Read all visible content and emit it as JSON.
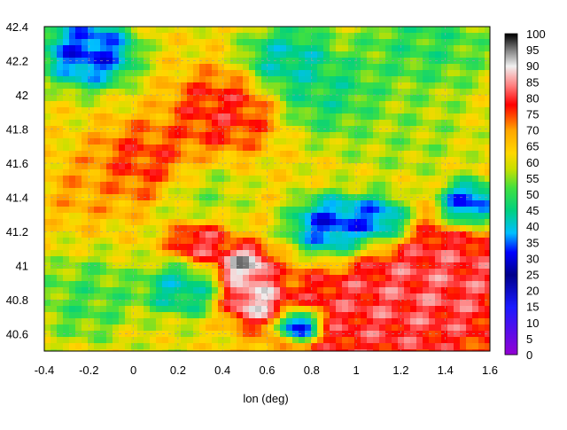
{
  "chart_data": {
    "type": "heatmap",
    "title": "",
    "xlabel": "lon (deg)",
    "ylabel": "",
    "xlim": [
      -0.4,
      1.6
    ],
    "ylim": [
      40.5,
      42.4
    ],
    "x_ticks": [
      "-0.4",
      "-0.2",
      "0",
      "0.2",
      "0.4",
      "0.6",
      "0.8",
      "1",
      "1.2",
      "1.4",
      "1.6"
    ],
    "y_ticks": [
      "40.6",
      "40.8",
      "41",
      "41.2",
      "41.4",
      "41.6",
      "41.8",
      "42",
      "42.2",
      "42.4"
    ],
    "grid": true,
    "colorbar": {
      "range": [
        0,
        100
      ],
      "ticks": [
        "0",
        "5",
        "10",
        "15",
        "20",
        "25",
        "30",
        "35",
        "40",
        "45",
        "50",
        "55",
        "60",
        "65",
        "70",
        "75",
        "80",
        "85",
        "90",
        "95",
        "100"
      ],
      "stops": [
        {
          "v": 0,
          "c": "#9400d3"
        },
        {
          "v": 15,
          "c": "#1a1aff"
        },
        {
          "v": 25,
          "c": "#00008b"
        },
        {
          "v": 32,
          "c": "#0000ff"
        },
        {
          "v": 38,
          "c": "#00bfff"
        },
        {
          "v": 45,
          "c": "#00d080"
        },
        {
          "v": 52,
          "c": "#40e040"
        },
        {
          "v": 58,
          "c": "#c8e000"
        },
        {
          "v": 63,
          "c": "#ffd700"
        },
        {
          "v": 70,
          "c": "#ffa500"
        },
        {
          "v": 78,
          "c": "#ff0000"
        },
        {
          "v": 84,
          "c": "#ff8080"
        },
        {
          "v": 90,
          "c": "#f0f0f0"
        },
        {
          "v": 95,
          "c": "#808080"
        },
        {
          "v": 100,
          "c": "#000000"
        }
      ]
    },
    "features": [
      {
        "lon": -0.2,
        "lat": 42.25,
        "v": 28,
        "s": 0.1
      },
      {
        "lon": 0.7,
        "lat": 42.2,
        "v": 40,
        "s": 0.1
      },
      {
        "lon": 0.9,
        "lat": 42.0,
        "v": 45,
        "s": 0.12
      },
      {
        "lon": 1.3,
        "lat": 42.3,
        "v": 48,
        "s": 0.15
      },
      {
        "lon": 1.2,
        "lat": 41.8,
        "v": 55,
        "s": 0.15
      },
      {
        "lon": 0.05,
        "lat": 41.6,
        "v": 78,
        "s": 0.12
      },
      {
        "lon": 0.4,
        "lat": 41.9,
        "v": 80,
        "s": 0.12
      },
      {
        "lon": 0.3,
        "lat": 41.4,
        "v": 55,
        "s": 0.1
      },
      {
        "lon": -0.2,
        "lat": 41.45,
        "v": 70,
        "s": 0.1
      },
      {
        "lon": 0.9,
        "lat": 41.2,
        "v": 22,
        "s": 0.1
      },
      {
        "lon": 1.1,
        "lat": 41.25,
        "v": 24,
        "s": 0.08
      },
      {
        "lon": 1.5,
        "lat": 41.35,
        "v": 25,
        "s": 0.07
      },
      {
        "lon": 0.5,
        "lat": 41.0,
        "v": 97,
        "s": 0.06
      },
      {
        "lon": 0.55,
        "lat": 40.8,
        "v": 93,
        "s": 0.07
      },
      {
        "lon": 0.3,
        "lat": 41.15,
        "v": 85,
        "s": 0.07
      },
      {
        "lon": 1.1,
        "lat": 40.75,
        "v": 83,
        "s": 0.25
      },
      {
        "lon": 1.4,
        "lat": 40.9,
        "v": 84,
        "s": 0.2
      },
      {
        "lon": -0.2,
        "lat": 40.8,
        "v": 50,
        "s": 0.12
      },
      {
        "lon": 0.2,
        "lat": 40.85,
        "v": 40,
        "s": 0.08
      },
      {
        "lon": 0.1,
        "lat": 40.55,
        "v": 60,
        "s": 0.1
      },
      {
        "lon": 0.75,
        "lat": 40.65,
        "v": 6,
        "s": 0.05
      }
    ],
    "base_value": 62
  }
}
